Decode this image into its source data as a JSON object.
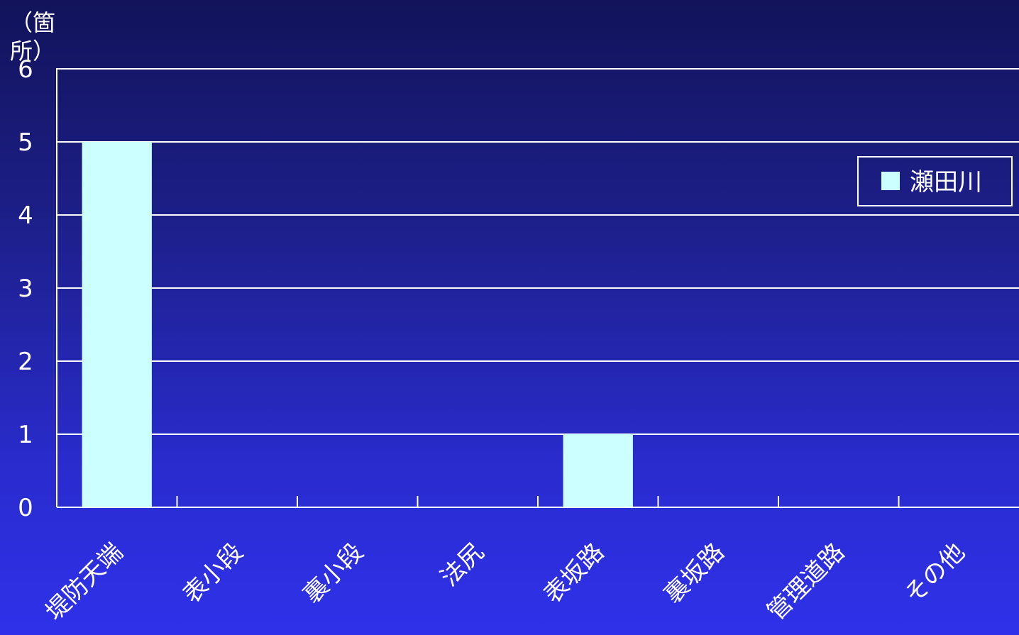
{
  "chart_data": {
    "type": "bar",
    "ylabel": "（箇所）",
    "categories": [
      "堤防天端",
      "表小段",
      "裏小段",
      "法尻",
      "表坂路",
      "裏坂路",
      "管理道路",
      "その他"
    ],
    "series": [
      {
        "name": "瀬田川",
        "values": [
          5,
          0,
          0,
          0,
          1,
          0,
          0,
          0
        ]
      }
    ],
    "ylim": [
      0,
      6
    ],
    "yticks": [
      0,
      1,
      2,
      3,
      4,
      5,
      6
    ],
    "grid": true,
    "legend": "right",
    "colors": {
      "bar": "#ccffff",
      "axis": "#ffffff",
      "grid": "#ffffff"
    }
  }
}
